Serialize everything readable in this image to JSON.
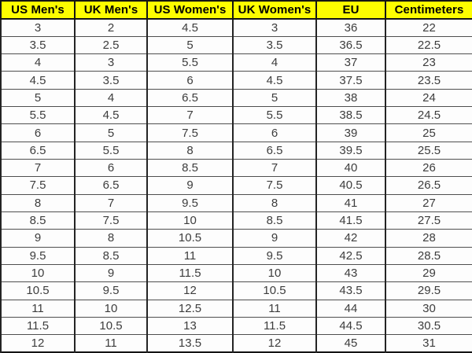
{
  "chart_data": {
    "type": "table",
    "columns": [
      "US Men's",
      "UK Men's",
      "US Women's",
      "UK Women's",
      "EU",
      "Centimeters"
    ],
    "rows": [
      [
        "3",
        "2",
        "4.5",
        "3",
        "36",
        "22"
      ],
      [
        "3.5",
        "2.5",
        "5",
        "3.5",
        "36.5",
        "22.5"
      ],
      [
        "4",
        "3",
        "5.5",
        "4",
        "37",
        "23"
      ],
      [
        "4.5",
        "3.5",
        "6",
        "4.5",
        "37.5",
        "23.5"
      ],
      [
        "5",
        "4",
        "6.5",
        "5",
        "38",
        "24"
      ],
      [
        "5.5",
        "4.5",
        "7",
        "5.5",
        "38.5",
        "24.5"
      ],
      [
        "6",
        "5",
        "7.5",
        "6",
        "39",
        "25"
      ],
      [
        "6.5",
        "5.5",
        "8",
        "6.5",
        "39.5",
        "25.5"
      ],
      [
        "7",
        "6",
        "8.5",
        "7",
        "40",
        "26"
      ],
      [
        "7.5",
        "6.5",
        "9",
        "7.5",
        "40.5",
        "26.5"
      ],
      [
        "8",
        "7",
        "9.5",
        "8",
        "41",
        "27"
      ],
      [
        "8.5",
        "7.5",
        "10",
        "8.5",
        "41.5",
        "27.5"
      ],
      [
        "9",
        "8",
        "10.5",
        "9",
        "42",
        "28"
      ],
      [
        "9.5",
        "8.5",
        "11",
        "9.5",
        "42.5",
        "28.5"
      ],
      [
        "10",
        "9",
        "11.5",
        "10",
        "43",
        "29"
      ],
      [
        "10.5",
        "9.5",
        "12",
        "10.5",
        "43.5",
        "29.5"
      ],
      [
        "11",
        "10",
        "12.5",
        "11",
        "44",
        "30"
      ],
      [
        "11.5",
        "10.5",
        "13",
        "11.5",
        "44.5",
        "30.5"
      ],
      [
        "12",
        "11",
        "13.5",
        "12",
        "45",
        "31"
      ]
    ],
    "layout": {
      "grid": true,
      "header_row": true,
      "row_count": 19,
      "column_count": 6
    }
  },
  "colors": {
    "header_bg": "#fdfd00",
    "header_text": "#000000",
    "body_bg": "#fdfdfd",
    "body_text": "#3d3d3d",
    "grid_vertical": "#242424",
    "grid_horizontal": "#4f4f4f",
    "outer_border": "#141414"
  }
}
